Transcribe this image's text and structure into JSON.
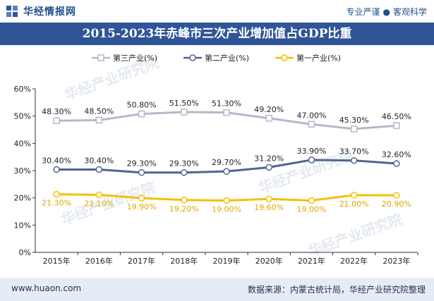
{
  "header": {
    "brand": "华经情报网",
    "slogan_left": "专业严谨",
    "slogan_sep": "●",
    "slogan_right": "客观科学"
  },
  "title": "2015-2023年赤峰市三次产业增加值占GDP比重",
  "watermark": "华经产业研究院",
  "footer": {
    "site": "www.huaon.com",
    "source": "数据来源：内蒙古统计局，华经产业研究院整理"
  },
  "colors": {
    "brand": "#2f5597",
    "tertiary": "#b4b9c9",
    "secondary": "#52648f",
    "primary": "#f5c000"
  },
  "chart_data": {
    "type": "line",
    "categories": [
      "2015年",
      "2016年",
      "2017年",
      "2018年",
      "2019年",
      "2020年",
      "2021年",
      "2022年",
      "2023年"
    ],
    "ylim": [
      0,
      60
    ],
    "yticks": [
      "0%",
      "10%",
      "20%",
      "30%",
      "40%",
      "50%",
      "60%"
    ],
    "legend_position": "top-center",
    "grid": false,
    "series": [
      {
        "name": "第三产业(%)",
        "color": "#b4b9c9",
        "values": [
          48.3,
          48.5,
          50.8,
          51.5,
          51.3,
          49.2,
          47.0,
          45.3,
          46.5
        ],
        "labels": [
          "48.30%",
          "48.50%",
          "50.80%",
          "51.50%",
          "51.30%",
          "49.20%",
          "47.00%",
          "45.30%",
          "46.50%"
        ],
        "label_position": "above"
      },
      {
        "name": "第二产业(%)",
        "color": "#52648f",
        "values": [
          30.4,
          30.4,
          29.3,
          29.3,
          29.7,
          31.2,
          33.9,
          33.7,
          32.6
        ],
        "labels": [
          "30.40%",
          "30.40%",
          "29.30%",
          "29.30%",
          "29.70%",
          "31.20%",
          "33.90%",
          "33.70%",
          "32.60%"
        ],
        "label_position": "above"
      },
      {
        "name": "第一产业(%)",
        "color": "#f5c000",
        "values": [
          21.3,
          21.1,
          19.9,
          19.2,
          19.0,
          19.6,
          19.0,
          21.0,
          20.9
        ],
        "labels": [
          "21.30%",
          "21.10%",
          "19.90%",
          "19.20%",
          "19.00%",
          "19.60%",
          "19.00%",
          "21.00%",
          "20.90%"
        ],
        "label_position": "below"
      }
    ]
  }
}
